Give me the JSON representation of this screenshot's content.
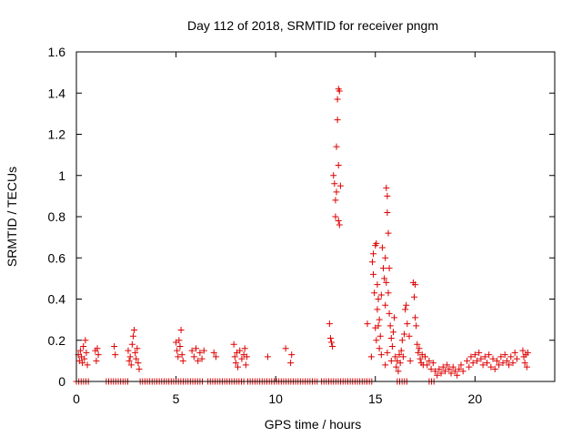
{
  "chart_data": {
    "type": "scatter",
    "title": "Day 112 of 2018, SRMTID for receiver pngm",
    "xlabel": "GPS time / hours",
    "ylabel": "SRMTID / TECUs",
    "xlim": [
      0,
      24
    ],
    "ylim": [
      0,
      1.6
    ],
    "xticks": [
      0,
      5,
      10,
      15,
      20
    ],
    "yticks": [
      0,
      0.2,
      0.4,
      0.6,
      0.8,
      1,
      1.2,
      1.4,
      1.6
    ],
    "xtick_labels": [
      "0",
      "5",
      "10",
      "15",
      "20"
    ],
    "ytick_labels": [
      "0",
      "0.2",
      "0.4",
      "0.6",
      "0.8",
      "1",
      "1.2",
      "1.4",
      "1.6"
    ],
    "marker": "+",
    "color": "#dd0000",
    "grid": false,
    "series": [
      {
        "name": "SRMTID",
        "points": [
          [
            0.1,
            0.13
          ],
          [
            0.15,
            0.1
          ],
          [
            0.2,
            0.15
          ],
          [
            0.25,
            0.12
          ],
          [
            0.3,
            0.09
          ],
          [
            0.35,
            0.17
          ],
          [
            0.4,
            0.11
          ],
          [
            0.45,
            0.2
          ],
          [
            0.5,
            0.14
          ],
          [
            0.55,
            0.08
          ],
          [
            0.95,
            0.15
          ],
          [
            1.0,
            0.1
          ],
          [
            1.05,
            0.16
          ],
          [
            1.1,
            0.13
          ],
          [
            1.9,
            0.17
          ],
          [
            1.95,
            0.13
          ],
          [
            2.6,
            0.15
          ],
          [
            2.65,
            0.1
          ],
          [
            2.7,
            0.12
          ],
          [
            2.75,
            0.08
          ],
          [
            2.8,
            0.18
          ],
          [
            2.85,
            0.22
          ],
          [
            2.9,
            0.25
          ],
          [
            2.95,
            0.14
          ],
          [
            3.0,
            0.11
          ],
          [
            3.05,
            0.16
          ],
          [
            3.1,
            0.09
          ],
          [
            3.15,
            0.06
          ],
          [
            5.0,
            0.19
          ],
          [
            5.05,
            0.15
          ],
          [
            5.1,
            0.12
          ],
          [
            5.15,
            0.2
          ],
          [
            5.2,
            0.17
          ],
          [
            5.25,
            0.25
          ],
          [
            5.3,
            0.13
          ],
          [
            5.35,
            0.1
          ],
          [
            5.8,
            0.15
          ],
          [
            5.9,
            0.12
          ],
          [
            6.0,
            0.16
          ],
          [
            6.1,
            0.1
          ],
          [
            6.2,
            0.14
          ],
          [
            6.3,
            0.11
          ],
          [
            6.4,
            0.15
          ],
          [
            6.9,
            0.14
          ],
          [
            7.0,
            0.12
          ],
          [
            7.9,
            0.18
          ],
          [
            7.95,
            0.12
          ],
          [
            8.0,
            0.09
          ],
          [
            8.05,
            0.14
          ],
          [
            8.1,
            0.07
          ],
          [
            8.2,
            0.15
          ],
          [
            8.3,
            0.11
          ],
          [
            8.4,
            0.13
          ],
          [
            8.45,
            0.16
          ],
          [
            8.5,
            0.08
          ],
          [
            8.55,
            0.12
          ],
          [
            9.6,
            0.12
          ],
          [
            10.5,
            0.16
          ],
          [
            10.8,
            0.13
          ],
          [
            10.75,
            0.09
          ],
          [
            12.7,
            0.28
          ],
          [
            12.75,
            0.21
          ],
          [
            12.8,
            0.19
          ],
          [
            12.85,
            0.17
          ],
          [
            12.9,
            1.0
          ],
          [
            12.95,
            0.96
          ],
          [
            13.0,
            0.88
          ],
          [
            13.0,
            0.8
          ],
          [
            13.05,
            1.14
          ],
          [
            13.05,
            0.92
          ],
          [
            13.1,
            1.27
          ],
          [
            13.1,
            1.37
          ],
          [
            13.15,
            1.42
          ],
          [
            13.15,
            1.05
          ],
          [
            13.2,
            1.41
          ],
          [
            13.2,
            0.76
          ],
          [
            13.25,
            0.95
          ],
          [
            13.15,
            0.78
          ],
          [
            14.6,
            0.28
          ],
          [
            14.8,
            0.12
          ],
          [
            14.85,
            0.58
          ],
          [
            14.9,
            0.62
          ],
          [
            14.9,
            0.52
          ],
          [
            14.95,
            0.43
          ],
          [
            15.0,
            0.66
          ],
          [
            15.0,
            0.26
          ],
          [
            15.05,
            0.67
          ],
          [
            15.05,
            0.2
          ],
          [
            15.1,
            0.47
          ],
          [
            15.1,
            0.35
          ],
          [
            15.15,
            0.4
          ],
          [
            15.15,
            0.27
          ],
          [
            15.2,
            0.16
          ],
          [
            15.2,
            0.3
          ],
          [
            15.25,
            0.22
          ],
          [
            15.3,
            0.42
          ],
          [
            15.3,
            0.13
          ],
          [
            15.35,
            0.65
          ],
          [
            15.4,
            0.55
          ],
          [
            15.45,
            0.5
          ],
          [
            15.5,
            0.37
          ],
          [
            15.5,
            0.6
          ],
          [
            15.55,
            0.48
          ],
          [
            15.55,
            0.94
          ],
          [
            15.6,
            0.9
          ],
          [
            15.6,
            0.82
          ],
          [
            15.65,
            0.72
          ],
          [
            15.65,
            0.43
          ],
          [
            15.7,
            0.55
          ],
          [
            15.7,
            0.33
          ],
          [
            15.75,
            0.27
          ],
          [
            15.8,
            0.21
          ],
          [
            15.85,
            0.17
          ],
          [
            15.9,
            0.24
          ],
          [
            15.95,
            0.31
          ],
          [
            15.5,
            0.08
          ],
          [
            15.6,
            0.14
          ],
          [
            15.8,
            0.1
          ],
          [
            16.0,
            0.12
          ],
          [
            16.05,
            0.07
          ],
          [
            16.1,
            0.1
          ],
          [
            16.15,
            0.05
          ],
          [
            16.2,
            0.13
          ],
          [
            16.25,
            0.09
          ],
          [
            16.3,
            0.15
          ],
          [
            16.35,
            0.2
          ],
          [
            16.4,
            0.12
          ],
          [
            16.45,
            0.23
          ],
          [
            16.5,
            0.35
          ],
          [
            16.55,
            0.37
          ],
          [
            16.6,
            0.28
          ],
          [
            16.7,
            0.22
          ],
          [
            16.75,
            0.1
          ],
          [
            16.9,
            0.48
          ],
          [
            16.95,
            0.41
          ],
          [
            17.0,
            0.47
          ],
          [
            17.0,
            0.31
          ],
          [
            17.05,
            0.27
          ],
          [
            17.1,
            0.18
          ],
          [
            17.15,
            0.14
          ],
          [
            17.2,
            0.16
          ],
          [
            17.25,
            0.11
          ],
          [
            17.3,
            0.09
          ],
          [
            17.35,
            0.13
          ],
          [
            17.4,
            0.08
          ],
          [
            17.5,
            0.12
          ],
          [
            17.6,
            0.08
          ],
          [
            17.7,
            0.1
          ],
          [
            17.8,
            0.06
          ],
          [
            17.9,
            0.09
          ],
          [
            18.0,
            0.05
          ],
          [
            18.1,
            0.03
          ],
          [
            18.2,
            0.06
          ],
          [
            18.3,
            0.04
          ],
          [
            18.4,
            0.07
          ],
          [
            18.5,
            0.05
          ],
          [
            18.6,
            0.08
          ],
          [
            18.7,
            0.06
          ],
          [
            18.8,
            0.04
          ],
          [
            18.9,
            0.07
          ],
          [
            19.0,
            0.05
          ],
          [
            19.1,
            0.03
          ],
          [
            19.2,
            0.06
          ],
          [
            19.3,
            0.08
          ],
          [
            19.4,
            0.05
          ],
          [
            19.6,
            0.1
          ],
          [
            19.7,
            0.07
          ],
          [
            19.8,
            0.12
          ],
          [
            19.9,
            0.09
          ],
          [
            20.0,
            0.13
          ],
          [
            20.1,
            0.1
          ],
          [
            20.2,
            0.14
          ],
          [
            20.3,
            0.11
          ],
          [
            20.4,
            0.08
          ],
          [
            20.5,
            0.12
          ],
          [
            20.6,
            0.09
          ],
          [
            20.7,
            0.13
          ],
          [
            20.8,
            0.07
          ],
          [
            20.9,
            0.11
          ],
          [
            21.0,
            0.06
          ],
          [
            21.1,
            0.1
          ],
          [
            21.2,
            0.08
          ],
          [
            21.3,
            0.12
          ],
          [
            21.4,
            0.09
          ],
          [
            21.5,
            0.13
          ],
          [
            21.6,
            0.1
          ],
          [
            21.7,
            0.08
          ],
          [
            21.8,
            0.12
          ],
          [
            21.9,
            0.09
          ],
          [
            22.0,
            0.14
          ],
          [
            22.1,
            0.11
          ],
          [
            22.4,
            0.15
          ],
          [
            22.45,
            0.12
          ],
          [
            22.5,
            0.09
          ],
          [
            22.55,
            0.13
          ],
          [
            22.6,
            0.07
          ],
          [
            22.65,
            0.14
          ]
        ],
        "zero_ranges": [
          [
            0.0,
            0.6
          ],
          [
            1.5,
            2.6
          ],
          [
            3.2,
            6.4
          ],
          [
            6.6,
            8.5
          ],
          [
            8.6,
            12.1
          ],
          [
            12.3,
            14.9
          ],
          [
            16.1,
            16.6
          ],
          [
            17.7,
            18.0
          ]
        ]
      }
    ]
  }
}
